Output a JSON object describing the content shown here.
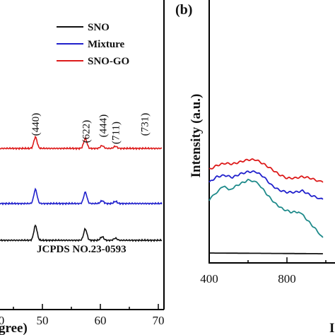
{
  "chart_data": [
    {
      "type": "line",
      "panel": "a",
      "title": "",
      "xlabel": "gree)",
      "ylabel": "",
      "xlim": [
        40,
        70
      ],
      "xticks": [
        "50",
        "60",
        "70"
      ],
      "partial_xtick": "0",
      "legend": {
        "placement": "top-right",
        "entries": [
          {
            "name": "SNO",
            "color": "#111111"
          },
          {
            "name": "Mixture",
            "color": "#2020cc"
          },
          {
            "name": "SNO-GO",
            "color": "#dd1a1a"
          }
        ]
      },
      "peak_labels": [
        {
          "text": "(440)",
          "x": 48.8
        },
        {
          "text": "(622)",
          "x": 57.5
        },
        {
          "text": "(444)",
          "x": 60.4
        },
        {
          "text": "(711)",
          "x": 62.6
        },
        {
          "text": "(731)",
          "x": 67.6
        }
      ],
      "annotation": "JCPDS NO.23-0593",
      "series": [
        {
          "name": "SNO-GO",
          "color": "#dd1a1a",
          "peaks": [
            {
              "x": 48.8,
              "h": 16
            },
            {
              "x": 57.4,
              "h": 14
            },
            {
              "x": 60.3,
              "h": 4
            },
            {
              "x": 62.6,
              "h": 3
            }
          ]
        },
        {
          "name": "Mixture",
          "color": "#2020cc",
          "peaks": [
            {
              "x": 48.8,
              "h": 20
            },
            {
              "x": 57.4,
              "h": 16
            },
            {
              "x": 60.3,
              "h": 4
            },
            {
              "x": 62.6,
              "h": 3
            }
          ]
        },
        {
          "name": "SNO",
          "color": "#111111",
          "peaks": [
            {
              "x": 48.8,
              "h": 21
            },
            {
              "x": 57.4,
              "h": 16
            },
            {
              "x": 60.3,
              "h": 5
            },
            {
              "x": 62.6,
              "h": 3
            }
          ]
        }
      ]
    },
    {
      "type": "line",
      "panel": "b",
      "title": "",
      "xlabel": "",
      "ylabel": "Intensity (a.u.)",
      "xlim": [
        400,
        1000
      ],
      "xticks": [
        "400",
        "800"
      ],
      "series": [
        {
          "name": "",
          "color": "#dd1a1a",
          "points": [
            [
              400,
              52
            ],
            [
              440,
              58
            ],
            [
              480,
              61
            ],
            [
              520,
              60
            ],
            [
              560,
              63
            ],
            [
              600,
              66
            ],
            [
              640,
              66
            ],
            [
              680,
              60
            ],
            [
              720,
              53
            ],
            [
              760,
              45
            ],
            [
              800,
              40
            ],
            [
              840,
              40
            ],
            [
              880,
              42
            ],
            [
              920,
              40
            ],
            [
              960,
              36
            ],
            [
              985,
              34
            ]
          ]
        },
        {
          "name": "",
          "color": "#2020cc",
          "points": [
            [
              400,
              34
            ],
            [
              440,
              42
            ],
            [
              480,
              44
            ],
            [
              520,
              41
            ],
            [
              560,
              46
            ],
            [
              600,
              49
            ],
            [
              640,
              49
            ],
            [
              680,
              42
            ],
            [
              720,
              30
            ],
            [
              760,
              23
            ],
            [
              800,
              20
            ],
            [
              840,
              20
            ],
            [
              880,
              22
            ],
            [
              920,
              16
            ],
            [
              960,
              12
            ],
            [
              985,
              10
            ]
          ]
        },
        {
          "name": "",
          "color": "#1e8a8a",
          "points": [
            [
              400,
              9
            ],
            [
              430,
              18
            ],
            [
              460,
              25
            ],
            [
              480,
              28
            ],
            [
              500,
              24
            ],
            [
              520,
              26
            ],
            [
              560,
              32
            ],
            [
              600,
              37
            ],
            [
              630,
              36
            ],
            [
              660,
              30
            ],
            [
              700,
              16
            ],
            [
              740,
              4
            ],
            [
              780,
              -4
            ],
            [
              820,
              -8
            ],
            [
              860,
              -8
            ],
            [
              880,
              -12
            ],
            [
              920,
              -24
            ],
            [
              960,
              -36
            ],
            [
              985,
              -44
            ]
          ]
        },
        {
          "name": "",
          "color": "#111111",
          "points": [
            [
              400,
              -66
            ],
            [
              985,
              -67
            ]
          ]
        }
      ]
    }
  ],
  "panel_labels": {
    "b": "(b)"
  }
}
